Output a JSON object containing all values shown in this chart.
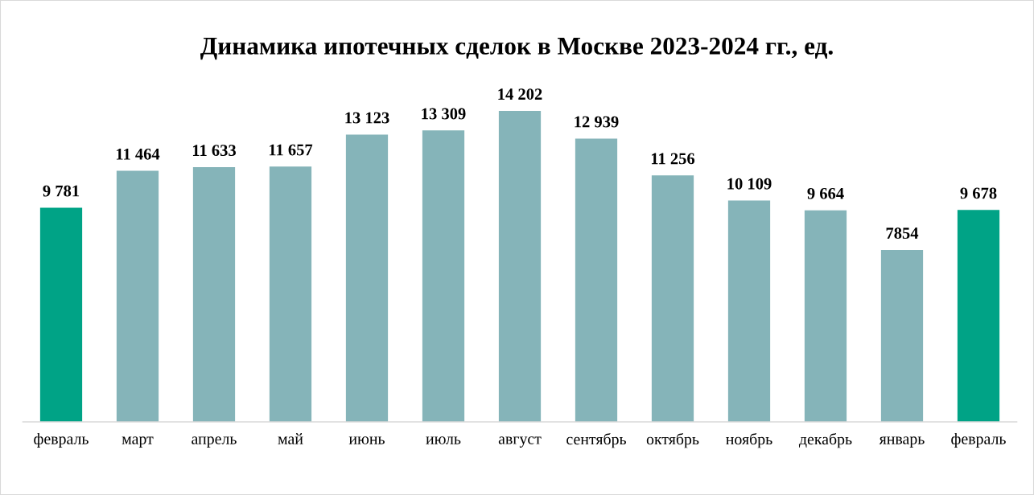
{
  "chart_data": {
    "type": "bar",
    "title": "Динамика ипотечных сделок в Москве 2023-2024 гг., ед.",
    "categories": [
      "февраль",
      "март",
      "апрель",
      "май",
      "июнь",
      "июль",
      "август",
      "сентябрь",
      "октябрь",
      "ноябрь",
      "декабрь",
      "январь",
      "февраль"
    ],
    "values": [
      9781,
      11464,
      11633,
      11657,
      13123,
      13309,
      14202,
      12939,
      11256,
      10109,
      9664,
      7854,
      9678
    ],
    "colors": [
      "#00a386",
      "#85b4b9",
      "#85b4b9",
      "#85b4b9",
      "#85b4b9",
      "#85b4b9",
      "#85b4b9",
      "#85b4b9",
      "#85b4b9",
      "#85b4b9",
      "#85b4b9",
      "#85b4b9",
      "#00a386"
    ],
    "value_labels": [
      "9 781",
      "11 464",
      "11 633",
      "11 657",
      "13 123",
      "13 309",
      "14 202",
      "12 939",
      "11 256",
      "10 109",
      "9 664",
      "7854",
      "9 678"
    ],
    "grid": false,
    "legend": false
  }
}
